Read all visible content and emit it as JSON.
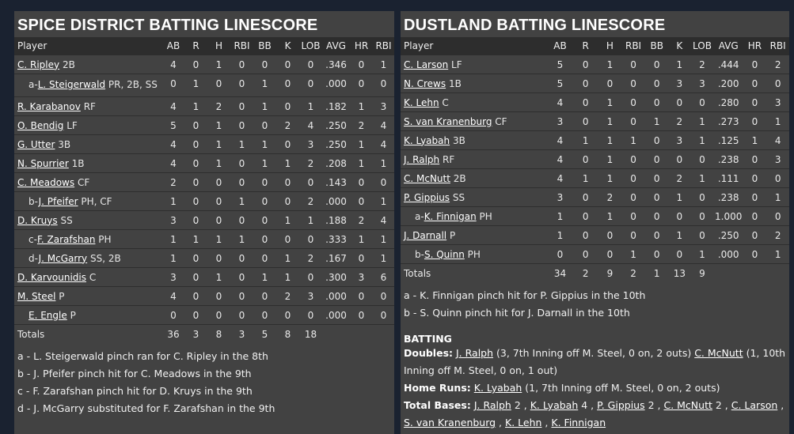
{
  "left": {
    "title": "SPICE DISTRICT BATTING LINESCORE",
    "headers": [
      "Player",
      "AB",
      "R",
      "H",
      "RBI",
      "BB",
      "K",
      "LOB",
      "AVG",
      "HR",
      "RBI"
    ],
    "rows": [
      {
        "prefix": "",
        "name": "C. Ripley",
        "pos": "2B",
        "stats": [
          "4",
          "0",
          "1",
          "0",
          "0",
          "0",
          "0",
          ".346",
          "0",
          "1"
        ]
      },
      {
        "prefix": "a-",
        "name": "L. Steigerwald",
        "pos": "PR, 2B, SS",
        "stats": [
          "0",
          "1",
          "0",
          "0",
          "1",
          "0",
          "0",
          ".000",
          "0",
          "0"
        ]
      },
      {
        "prefix": "",
        "name": "R. Karabanov",
        "pos": "RF",
        "stats": [
          "4",
          "1",
          "2",
          "0",
          "1",
          "0",
          "1",
          ".182",
          "1",
          "3"
        ]
      },
      {
        "prefix": "",
        "name": "O. Bendig",
        "pos": "LF",
        "stats": [
          "5",
          "0",
          "1",
          "0",
          "0",
          "2",
          "4",
          ".250",
          "2",
          "4"
        ]
      },
      {
        "prefix": "",
        "name": "G. Utter",
        "pos": "3B",
        "stats": [
          "4",
          "0",
          "1",
          "1",
          "1",
          "0",
          "3",
          ".250",
          "1",
          "4"
        ]
      },
      {
        "prefix": "",
        "name": "N. Spurrier",
        "pos": "1B",
        "stats": [
          "4",
          "0",
          "1",
          "0",
          "1",
          "1",
          "2",
          ".208",
          "1",
          "1"
        ]
      },
      {
        "prefix": "",
        "name": "C. Meadows",
        "pos": "CF",
        "stats": [
          "2",
          "0",
          "0",
          "0",
          "0",
          "0",
          "0",
          ".143",
          "0",
          "0"
        ]
      },
      {
        "prefix": "b-",
        "name": "J. Pfeifer",
        "pos": "PH, CF",
        "stats": [
          "1",
          "0",
          "0",
          "1",
          "0",
          "0",
          "2",
          ".000",
          "0",
          "1"
        ]
      },
      {
        "prefix": "",
        "name": "D. Kruys",
        "pos": "SS",
        "stats": [
          "3",
          "0",
          "0",
          "0",
          "0",
          "1",
          "1",
          ".188",
          "2",
          "4"
        ]
      },
      {
        "prefix": "c-",
        "name": "F. Zarafshan",
        "pos": "PH",
        "stats": [
          "1",
          "1",
          "1",
          "1",
          "0",
          "0",
          "0",
          ".333",
          "1",
          "1"
        ]
      },
      {
        "prefix": "d-",
        "name": "J. McGarry",
        "pos": "SS, 2B",
        "stats": [
          "1",
          "0",
          "0",
          "0",
          "0",
          "1",
          "2",
          ".167",
          "0",
          "1"
        ]
      },
      {
        "prefix": "",
        "name": "D. Karvounidis",
        "pos": "C",
        "stats": [
          "3",
          "0",
          "1",
          "0",
          "1",
          "1",
          "0",
          ".300",
          "3",
          "6"
        ]
      },
      {
        "prefix": "",
        "name": "M. Steel",
        "pos": "P",
        "stats": [
          "4",
          "0",
          "0",
          "0",
          "0",
          "2",
          "3",
          ".000",
          "0",
          "0"
        ]
      },
      {
        "prefix": "",
        "name": "E. Engle",
        "pos": "P",
        "stats": [
          "0",
          "0",
          "0",
          "0",
          "0",
          "0",
          "0",
          ".000",
          "0",
          "0"
        ],
        "indent": true
      }
    ],
    "totals": {
      "label": "Totals",
      "stats": [
        "36",
        "3",
        "8",
        "3",
        "5",
        "8",
        "18",
        "",
        "",
        ""
      ]
    },
    "notes": [
      "a - L. Steigerwald pinch ran for C. Ripley in the 8th",
      "b - J. Pfeifer pinch hit for C. Meadows in the 9th",
      "c - F. Zarafshan pinch hit for D. Kruys in the 9th",
      "d - J. McGarry substituted for F. Zarafshan in the 9th"
    ]
  },
  "right": {
    "title": "DUSTLAND BATTING LINESCORE",
    "headers": [
      "Player",
      "AB",
      "R",
      "H",
      "RBI",
      "BB",
      "K",
      "LOB",
      "AVG",
      "HR",
      "RBI"
    ],
    "rows": [
      {
        "prefix": "",
        "name": "C. Larson",
        "pos": "LF",
        "stats": [
          "5",
          "0",
          "1",
          "0",
          "0",
          "1",
          "2",
          ".444",
          "0",
          "2"
        ]
      },
      {
        "prefix": "",
        "name": "N. Crews",
        "pos": "1B",
        "stats": [
          "5",
          "0",
          "0",
          "0",
          "0",
          "3",
          "3",
          ".200",
          "0",
          "0"
        ]
      },
      {
        "prefix": "",
        "name": "K. Lehn",
        "pos": "C",
        "stats": [
          "4",
          "0",
          "1",
          "0",
          "0",
          "0",
          "0",
          ".280",
          "0",
          "3"
        ]
      },
      {
        "prefix": "",
        "name": "S. van Kranenburg",
        "pos": "CF",
        "stats": [
          "3",
          "0",
          "1",
          "0",
          "1",
          "2",
          "1",
          ".273",
          "0",
          "1"
        ]
      },
      {
        "prefix": "",
        "name": "K. Lyabah",
        "pos": "3B",
        "stats": [
          "4",
          "1",
          "1",
          "1",
          "0",
          "3",
          "1",
          ".125",
          "1",
          "4"
        ]
      },
      {
        "prefix": "",
        "name": "J. Ralph",
        "pos": "RF",
        "stats": [
          "4",
          "0",
          "1",
          "0",
          "0",
          "0",
          "0",
          ".238",
          "0",
          "3"
        ]
      },
      {
        "prefix": "",
        "name": "C. McNutt",
        "pos": "2B",
        "stats": [
          "4",
          "1",
          "1",
          "0",
          "0",
          "2",
          "1",
          ".111",
          "0",
          "0"
        ]
      },
      {
        "prefix": "",
        "name": "P. Gippius",
        "pos": "SS",
        "stats": [
          "3",
          "0",
          "2",
          "0",
          "0",
          "1",
          "0",
          ".238",
          "0",
          "1"
        ]
      },
      {
        "prefix": "a-",
        "name": "K. Finnigan",
        "pos": "PH",
        "stats": [
          "1",
          "0",
          "1",
          "0",
          "0",
          "0",
          "0",
          "1.000",
          "0",
          "0"
        ]
      },
      {
        "prefix": "",
        "name": "J. Darnall",
        "pos": "P",
        "stats": [
          "1",
          "0",
          "0",
          "0",
          "0",
          "1",
          "0",
          ".250",
          "0",
          "2"
        ]
      },
      {
        "prefix": "b-",
        "name": "S. Quinn",
        "pos": "PH",
        "stats": [
          "0",
          "0",
          "0",
          "1",
          "0",
          "0",
          "1",
          ".000",
          "0",
          "1"
        ]
      }
    ],
    "totals": {
      "label": "Totals",
      "stats": [
        "34",
        "2",
        "9",
        "2",
        "1",
        "13",
        "9",
        "",
        "",
        ""
      ]
    },
    "notes": [
      "a - K. Finnigan pinch hit for P. Gippius in the 10th",
      "b - S. Quinn pinch hit for J. Darnall in the 10th"
    ],
    "batting": {
      "heading": "BATTING",
      "doubles_label": "Doubles:",
      "doubles": [
        {
          "name": "J. Ralph",
          "detail": "(3, 7th Inning off M. Steel, 0 on, 2 outs)"
        },
        {
          "name": "C. McNutt",
          "detail": "(1, 10th Inning off M. Steel, 0 on, 1 out)"
        }
      ],
      "hr_label": "Home Runs:",
      "home_runs": [
        {
          "name": "K. Lyabah",
          "detail": "(1, 7th Inning off M. Steel, 0 on, 2 outs)"
        }
      ],
      "tb_label": "Total Bases:",
      "total_bases": [
        {
          "name": "J. Ralph",
          "count": "2"
        },
        {
          "name": "K. Lyabah",
          "count": "4"
        },
        {
          "name": "P. Gippius",
          "count": "2"
        },
        {
          "name": "C. McNutt",
          "count": "2"
        },
        {
          "name": "C. Larson",
          "count": ""
        },
        {
          "name": "S. van Kranenburg",
          "count": ""
        },
        {
          "name": "K. Lehn",
          "count": ""
        },
        {
          "name": "K. Finnigan",
          "count": ""
        }
      ]
    }
  }
}
